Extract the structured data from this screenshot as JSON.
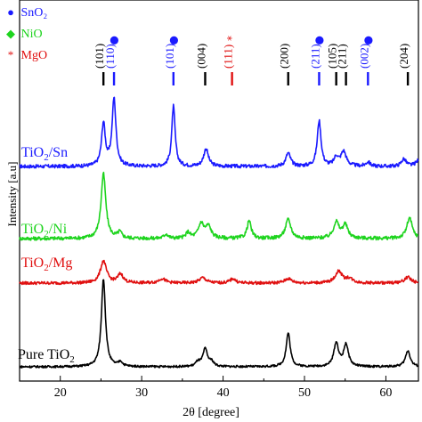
{
  "chart_data": {
    "type": "line",
    "xlabel": "2θ [degree]",
    "ylabel": "Intensity [a.u]",
    "xlim": [
      15,
      64
    ],
    "x_ticks": [
      "20",
      "30",
      "40",
      "50",
      "60"
    ],
    "grid": false,
    "legend": {
      "position": "top-left",
      "entries": [
        {
          "symbol": "●",
          "name": "SnO₂",
          "color": "#1a1aff"
        },
        {
          "symbol": "◆",
          "name": "NiO",
          "color": "#1ed41e"
        },
        {
          "symbol": "*",
          "name": "MgO",
          "color": "#e01010"
        }
      ]
    },
    "peak_annotations": [
      {
        "x": 25.3,
        "label": "(101)",
        "phase": "TiO2",
        "color": "#000000",
        "symbol": ""
      },
      {
        "x": 26.6,
        "label": "(110)",
        "phase": "SnO2",
        "color": "#1a1aff",
        "symbol": "●"
      },
      {
        "x": 33.9,
        "label": "(101)",
        "phase": "SnO2",
        "color": "#1a1aff",
        "symbol": "●"
      },
      {
        "x": 37.8,
        "label": "(004)",
        "phase": "TiO2",
        "color": "#000000",
        "symbol": ""
      },
      {
        "x": 41.1,
        "label": "(111)",
        "phase": "MgO",
        "color": "#e01010",
        "symbol": "*"
      },
      {
        "x": 48.0,
        "label": "(200)",
        "phase": "TiO2",
        "color": "#000000",
        "symbol": ""
      },
      {
        "x": 51.8,
        "label": "(211)",
        "phase": "SnO2",
        "color": "#1a1aff",
        "symbol": "●"
      },
      {
        "x": 53.9,
        "label": "(105)",
        "phase": "TiO2",
        "color": "#000000",
        "symbol": ""
      },
      {
        "x": 55.1,
        "label": "(211)",
        "phase": "TiO2",
        "color": "#000000",
        "symbol": ""
      },
      {
        "x": 57.8,
        "label": "(002)",
        "phase": "SnO2",
        "color": "#1a1aff",
        "symbol": "●"
      },
      {
        "x": 62.7,
        "label": "(204)",
        "phase": "TiO2",
        "color": "#000000",
        "symbol": ""
      }
    ],
    "series": [
      {
        "name": "TiO2/Sn",
        "label_main": "TiO",
        "label_sub": "2",
        "label_rest": "/Sn",
        "color": "#1a1aff",
        "baseline": 0.0,
        "noise": 0.6,
        "peaks": [
          [
            25.3,
            14.5,
            0.28
          ],
          [
            26.6,
            23.0,
            0.28
          ],
          [
            33.9,
            20.5,
            0.25
          ],
          [
            37.9,
            6.0,
            0.35
          ],
          [
            48.0,
            4.5,
            0.35
          ],
          [
            51.8,
            15.5,
            0.28
          ],
          [
            53.9,
            3.0,
            0.3
          ],
          [
            54.8,
            5.0,
            0.4
          ],
          [
            57.8,
            1.5,
            0.3
          ],
          [
            62.2,
            2.5,
            0.35
          ],
          [
            64.0,
            2.0,
            0.4
          ]
        ]
      },
      {
        "name": "TiO2/Ni",
        "label_main": "TiO",
        "label_sub": "2",
        "label_rest": "/Ni",
        "color": "#1ed41e",
        "baseline": 0.0,
        "noise": 0.6,
        "peaks": [
          [
            25.3,
            22.0,
            0.35
          ],
          [
            27.3,
            2.0,
            0.3
          ],
          [
            33.0,
            1.5,
            0.3
          ],
          [
            35.7,
            2.0,
            0.3
          ],
          [
            37.3,
            5.0,
            0.4
          ],
          [
            38.2,
            4.0,
            0.4
          ],
          [
            43.2,
            6.0,
            0.3
          ],
          [
            48.0,
            6.5,
            0.4
          ],
          [
            53.9,
            5.5,
            0.4
          ],
          [
            55.0,
            4.5,
            0.4
          ],
          [
            62.9,
            7.0,
            0.4
          ]
        ]
      },
      {
        "name": "TiO2/Mg",
        "label_main": "TiO",
        "label_sub": "2",
        "label_rest": "/Mg",
        "color": "#e01010",
        "baseline": 0.0,
        "noise": 0.5,
        "peaks": [
          [
            25.3,
            7.5,
            0.45
          ],
          [
            27.4,
            3.0,
            0.4
          ],
          [
            32.5,
            1.5,
            0.5
          ],
          [
            37.5,
            1.8,
            0.5
          ],
          [
            41.2,
            1.5,
            0.4
          ],
          [
            48.0,
            1.5,
            0.5
          ],
          [
            54.2,
            4.0,
            0.5
          ],
          [
            55.5,
            1.5,
            0.5
          ],
          [
            62.7,
            2.0,
            0.5
          ]
        ]
      },
      {
        "name": "Pure TiO2",
        "label_main": "Pure TiO",
        "label_sub": "2",
        "label_rest": "",
        "color": "#000000",
        "baseline": 0.0,
        "noise": 0.35,
        "peaks": [
          [
            25.3,
            30.0,
            0.3
          ],
          [
            27.4,
            1.5,
            0.3
          ],
          [
            36.9,
            1.5,
            0.3
          ],
          [
            37.8,
            6.0,
            0.35
          ],
          [
            38.6,
            1.5,
            0.3
          ],
          [
            48.0,
            11.5,
            0.3
          ],
          [
            53.9,
            8.0,
            0.35
          ],
          [
            55.1,
            7.5,
            0.35
          ],
          [
            62.7,
            5.5,
            0.35
          ]
        ]
      }
    ]
  }
}
